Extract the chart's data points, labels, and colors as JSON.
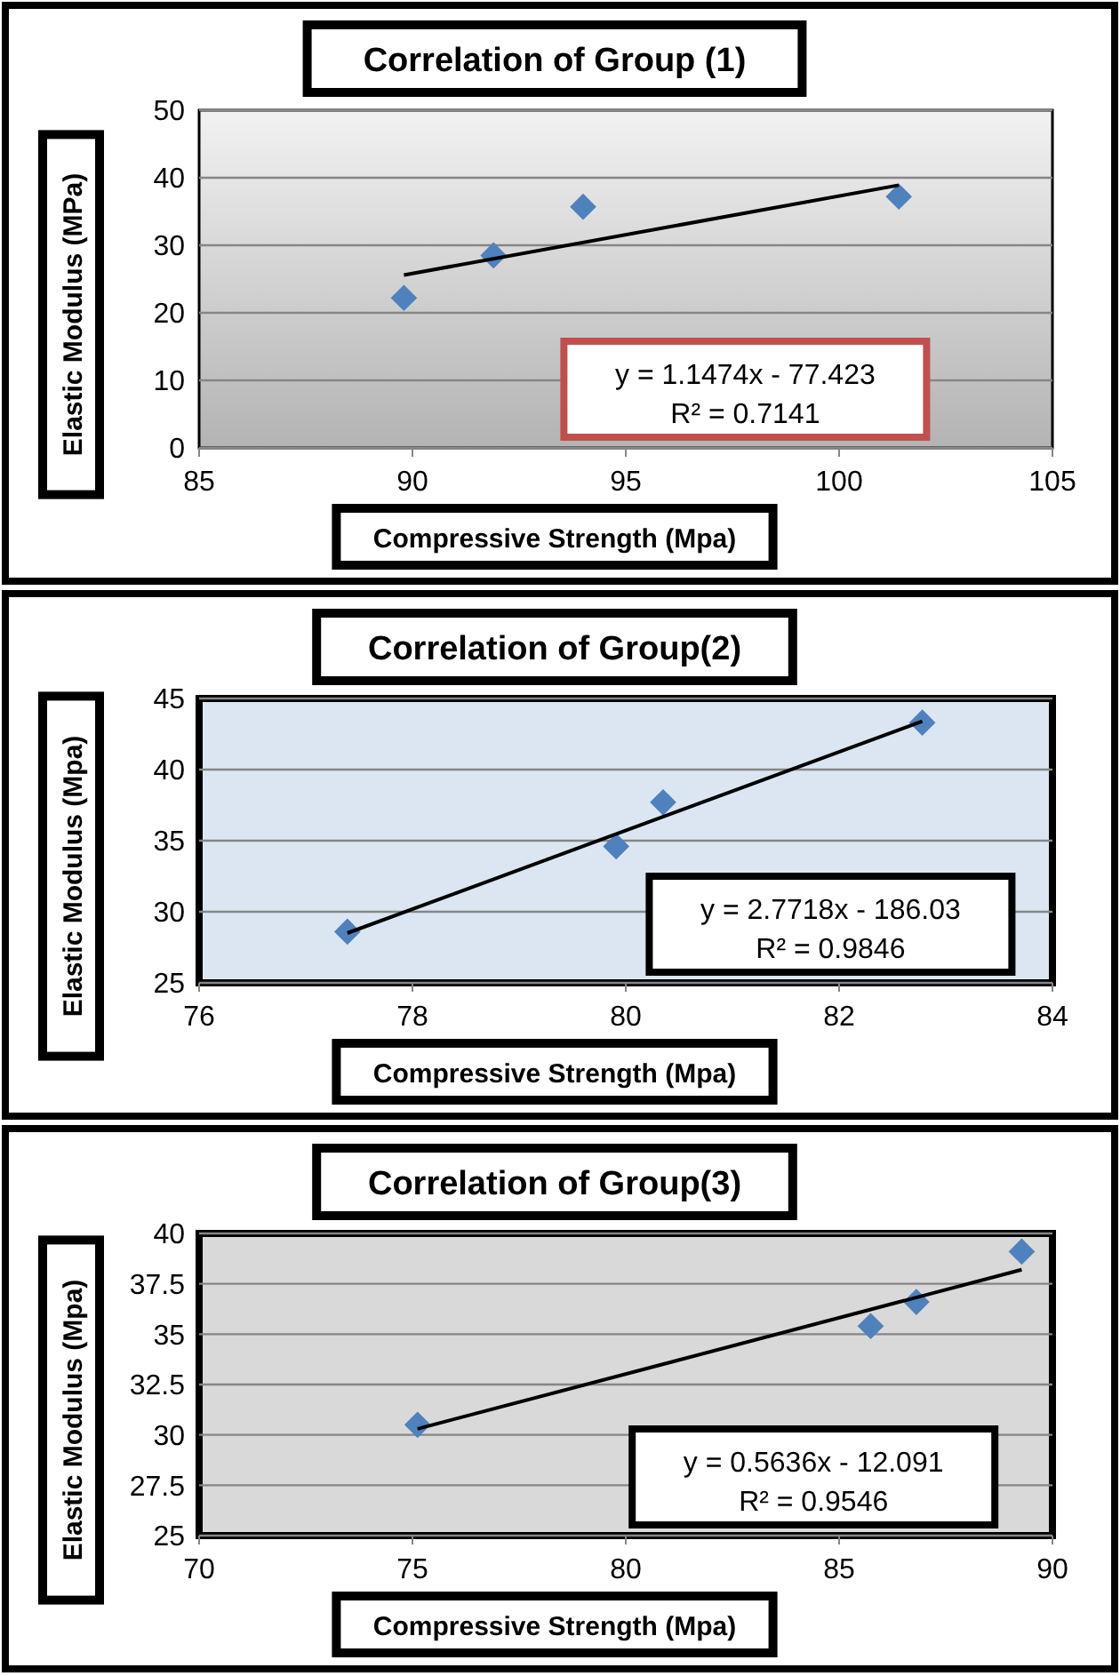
{
  "chart_data": [
    {
      "type": "scatter",
      "title": "Correlation of Group (1)",
      "xlabel": "Compressive Strength (Mpa)",
      "ylabel": "Elastic Modulus (MPa)",
      "xlim": [
        85,
        105
      ],
      "xticks": [
        85,
        90,
        95,
        100,
        105
      ],
      "ylim": [
        0,
        50
      ],
      "yticks": [
        0,
        10,
        20,
        30,
        40,
        50
      ],
      "grid": "y",
      "annotations": [
        "y = 1.1474x - 77.423",
        "R² = 0.7141"
      ],
      "series": [
        {
          "type": "scatter",
          "marker": "diamond",
          "color": "#4f81bd",
          "x": [
            89.8,
            91.9,
            94.0,
            101.4
          ],
          "values": [
            22.2,
            28.5,
            35.7,
            37.2
          ]
        },
        {
          "type": "line",
          "marker": "none",
          "color": "#000000",
          "x": [
            89.8,
            101.4
          ],
          "values": [
            25.6,
            38.9
          ]
        }
      ]
    },
    {
      "type": "scatter",
      "title": "Correlation of Group(2)",
      "xlabel": "Compressive Strength (Mpa)",
      "ylabel": "Elastic Modulus (Mpa)",
      "xlim": [
        76,
        84
      ],
      "xticks": [
        76,
        78,
        80,
        82,
        84
      ],
      "ylim": [
        25,
        45
      ],
      "yticks": [
        25,
        30,
        35,
        40,
        45
      ],
      "grid": "y",
      "annotations": [
        "y = 2.7718x - 186.03",
        "R² = 0.9846"
      ],
      "series": [
        {
          "type": "scatter",
          "marker": "diamond",
          "color": "#4f81bd",
          "x": [
            77.39,
            79.91,
            80.35,
            82.78
          ],
          "values": [
            28.6,
            34.6,
            37.7,
            43.3
          ]
        },
        {
          "type": "line",
          "marker": "none",
          "color": "#000000",
          "x": [
            77.39,
            82.78
          ],
          "values": [
            28.5,
            43.4
          ]
        }
      ]
    },
    {
      "type": "scatter",
      "title": "Correlation of Group(3)",
      "xlabel": "Compressive Strength (Mpa)",
      "ylabel": "Elastic Modulus (Mpa)",
      "xlim": [
        70,
        90
      ],
      "xticks": [
        70,
        75,
        80,
        85,
        90
      ],
      "ylim": [
        25,
        40
      ],
      "yticks": [
        25,
        27.5,
        30,
        32.5,
        35,
        37.5,
        40
      ],
      "grid": "y",
      "annotations": [
        "y = 0.5636x - 12.091",
        "R² = 0.9546"
      ],
      "series": [
        {
          "type": "scatter",
          "marker": "diamond",
          "color": "#4f81bd",
          "x": [
            75.12,
            85.74,
            86.81,
            89.28
          ],
          "values": [
            30.5,
            35.4,
            36.6,
            39.1
          ]
        },
        {
          "type": "line",
          "marker": "none",
          "color": "#000000",
          "x": [
            75.12,
            89.28
          ],
          "values": [
            30.3,
            38.2
          ]
        }
      ]
    }
  ]
}
